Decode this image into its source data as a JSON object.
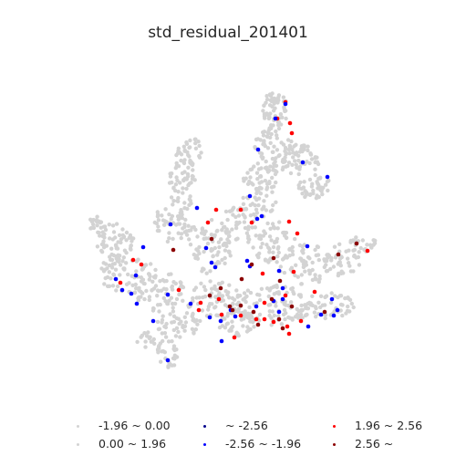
{
  "title": "std_residual_201401",
  "colors": {
    "neg_low": "#d3d3d3",
    "pos_low": "#d3d3d3",
    "neg_extreme": "#00008b",
    "neg_mid": "#0000ff",
    "pos_mid": "#ff0000",
    "pos_extreme": "#8b0000"
  },
  "legend": [
    {
      "key": "neg_low",
      "label": "-1.96 ~ 0.00"
    },
    {
      "key": "pos_low",
      "label": "0.00 ~ 1.96"
    },
    {
      "key": "neg_extreme",
      "label": "~ -2.56"
    },
    {
      "key": "neg_mid",
      "label": "-2.56 ~ -1.96"
    },
    {
      "key": "pos_mid",
      "label": "1.96 ~ 2.56"
    },
    {
      "key": "pos_extreme",
      "label": "2.56 ~"
    }
  ]
}
